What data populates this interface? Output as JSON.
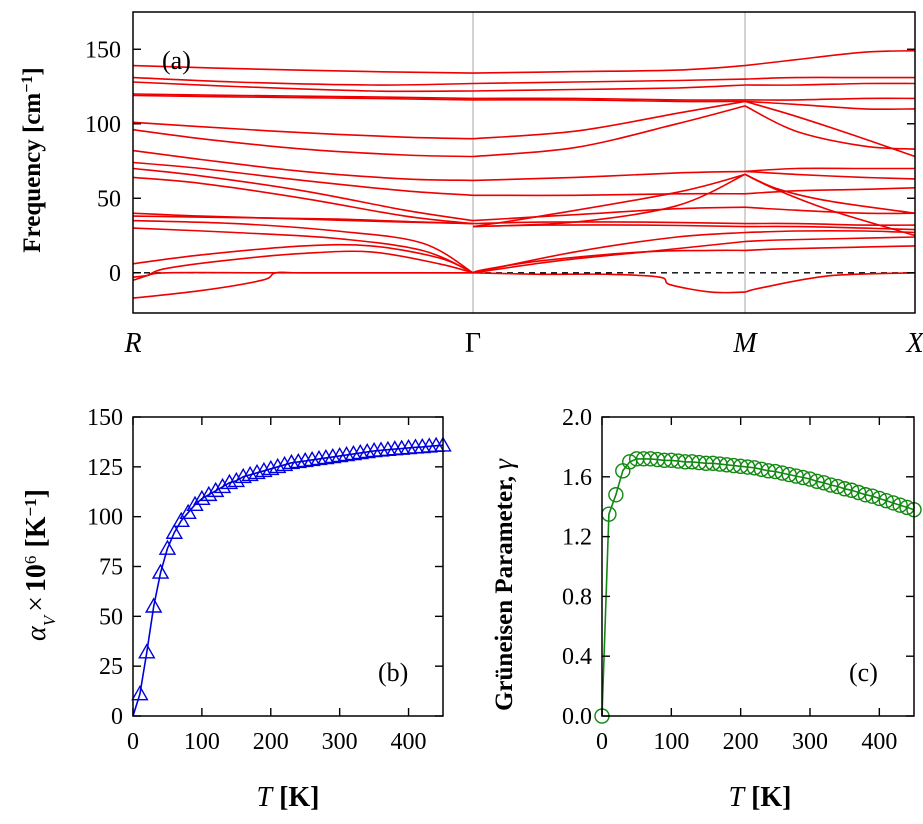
{
  "figure": {
    "panels": [
      "(a)",
      "(b)",
      "(c)"
    ]
  },
  "chart_data": [
    {
      "type": "line",
      "panel_label": "(a)",
      "title": "",
      "ylabel_text": "Frequency [cm",
      "ylabel_sup": "−1",
      "ylabel_close": "]",
      "ylim": [
        -27,
        175
      ],
      "yticks": [
        0,
        50,
        100,
        150
      ],
      "ytick_labels": [
        "0",
        "50",
        "100",
        "150"
      ],
      "high_symmetry_labels": [
        "R",
        "Γ",
        "M",
        "X"
      ],
      "high_symmetry_positions": [
        0,
        1,
        1.8,
        2.3
      ],
      "line_color": "#ee0000",
      "zero_line": "dashed",
      "series": [
        {
          "name": "branch-1",
          "x": [
            0,
            0.04,
            0.1,
            0.4,
            0.8,
            1
          ],
          "y": [
            -3,
            -2,
            0,
            0,
            0,
            0
          ]
        },
        {
          "name": "branch-2",
          "x": [
            0,
            0.2,
            0.38,
            0.42,
            0.5,
            0.8,
            1
          ],
          "y": [
            -17,
            -12,
            -5,
            0,
            0,
            0,
            0
          ]
        },
        {
          "name": "branch-3",
          "x": [
            0,
            0.04,
            0.1,
            0.3,
            0.5,
            0.7,
            0.9,
            1
          ],
          "y": [
            -5,
            -2,
            3,
            9,
            13,
            14,
            6,
            0
          ]
        },
        {
          "name": "branch-4",
          "x": [
            0,
            0.2,
            0.5,
            0.7,
            0.9,
            1
          ],
          "y": [
            6,
            12,
            18,
            18,
            10,
            0
          ]
        },
        {
          "name": "branch-5",
          "x": [
            0,
            0.3,
            0.6,
            0.85,
            1
          ],
          "y": [
            30,
            27,
            23,
            15,
            0
          ]
        },
        {
          "name": "branch-6",
          "x": [
            0,
            0.3,
            0.6,
            0.85,
            1
          ],
          "y": [
            35,
            33,
            28,
            20,
            0
          ]
        },
        {
          "name": "branch-7",
          "x": [
            1,
            1.03,
            1.2,
            1.5,
            1.7,
            1.8
          ],
          "y": [
            0,
            2,
            8,
            14,
            15,
            15
          ]
        },
        {
          "name": "branch-8",
          "x": [
            1,
            1.25,
            1.55,
            1.8
          ],
          "y": [
            0,
            8,
            15,
            21
          ]
        },
        {
          "name": "branch-9",
          "x": [
            1,
            1.2,
            1.4,
            1.55,
            1.58,
            1.7,
            1.8
          ],
          "y": [
            0,
            -1,
            -1,
            -3,
            -8,
            -13,
            -13
          ]
        },
        {
          "name": "branch-10",
          "x": [
            1,
            1.3,
            1.6,
            1.8
          ],
          "y": [
            0,
            14,
            24,
            27
          ]
        },
        {
          "name": "branch-11",
          "x": [
            1,
            1.2,
            1.5,
            1.8
          ],
          "y": [
            31,
            32,
            32,
            31
          ]
        },
        {
          "name": "branch-12",
          "x": [
            1,
            1.2,
            1.5,
            1.8
          ],
          "y": [
            33,
            34,
            34,
            33
          ]
        },
        {
          "name": "branch-13",
          "x": [
            1,
            1.3,
            1.6,
            1.8
          ],
          "y": [
            31,
            34,
            45,
            66
          ]
        },
        {
          "name": "branch-14",
          "x": [
            1,
            1.2,
            1.6,
            1.8
          ],
          "y": [
            31,
            38,
            54,
            66
          ]
        },
        {
          "name": "branch-15",
          "x": [
            0,
            0.3,
            0.6,
            0.85,
            1
          ],
          "y": [
            38,
            37,
            36,
            34,
            33
          ]
        },
        {
          "name": "branch-16",
          "x": [
            0,
            0.2,
            0.5,
            0.8,
            1
          ],
          "y": [
            40,
            38,
            36,
            34,
            33
          ]
        },
        {
          "name": "branch-17",
          "x": [
            0,
            0.2,
            0.5,
            0.8,
            1
          ],
          "y": [
            64,
            60,
            50,
            38,
            33
          ]
        },
        {
          "name": "branch-18",
          "x": [
            0,
            0.2,
            0.5,
            0.8,
            1
          ],
          "y": [
            70,
            65,
            55,
            42,
            35
          ]
        },
        {
          "name": "branch-19",
          "x": [
            0,
            0.2,
            0.5,
            0.8,
            1
          ],
          "y": [
            74,
            70,
            62,
            55,
            52
          ]
        },
        {
          "name": "branch-20",
          "x": [
            0,
            0.2,
            0.5,
            0.8,
            1
          ],
          "y": [
            82,
            76,
            68,
            63,
            62
          ]
        },
        {
          "name": "branch-21",
          "x": [
            0,
            0.2,
            0.5,
            0.8,
            1
          ],
          "y": [
            96,
            90,
            83,
            79,
            78
          ]
        },
        {
          "name": "branch-22",
          "x": [
            0,
            0.2,
            0.5,
            0.8,
            1
          ],
          "y": [
            101,
            98,
            94,
            91,
            90
          ]
        },
        {
          "name": "branch-23",
          "x": [
            0,
            0.3,
            0.7,
            1
          ],
          "y": [
            119,
            118,
            117,
            116
          ]
        },
        {
          "name": "branch-24",
          "x": [
            0,
            0.3,
            0.7,
            1
          ],
          "y": [
            120,
            119,
            118,
            117
          ]
        },
        {
          "name": "branch-25",
          "x": [
            0,
            0.3,
            0.7,
            1
          ],
          "y": [
            128,
            125,
            122,
            122
          ]
        },
        {
          "name": "branch-26",
          "x": [
            0,
            0.3,
            0.7,
            1
          ],
          "y": [
            131,
            128,
            126,
            127
          ]
        },
        {
          "name": "branch-27",
          "x": [
            0,
            0.3,
            0.7,
            1
          ],
          "y": [
            139,
            137,
            135,
            134
          ]
        },
        {
          "name": "branch-28",
          "x": [
            1,
            1.3,
            1.6,
            1.8
          ],
          "y": [
            35,
            39,
            43,
            44
          ]
        },
        {
          "name": "branch-29",
          "x": [
            1,
            1.3,
            1.6,
            1.8
          ],
          "y": [
            52,
            52,
            53,
            53
          ]
        },
        {
          "name": "branch-30",
          "x": [
            1,
            1.3,
            1.6,
            1.8
          ],
          "y": [
            62,
            64,
            67,
            68
          ]
        },
        {
          "name": "branch-31",
          "x": [
            1,
            1.3,
            1.6,
            1.8
          ],
          "y": [
            78,
            84,
            100,
            112
          ]
        },
        {
          "name": "branch-32",
          "x": [
            1,
            1.3,
            1.6,
            1.8
          ],
          "y": [
            90,
            95,
            107,
            115
          ]
        },
        {
          "name": "branch-33",
          "x": [
            1,
            1.3,
            1.6,
            1.8
          ],
          "y": [
            116,
            116,
            115,
            115
          ]
        },
        {
          "name": "branch-34",
          "x": [
            1,
            1.3,
            1.6,
            1.8
          ],
          "y": [
            117,
            117,
            116,
            116
          ]
        },
        {
          "name": "branch-35",
          "x": [
            1,
            1.3,
            1.6,
            1.8
          ],
          "y": [
            122,
            123,
            124,
            126
          ]
        },
        {
          "name": "branch-36",
          "x": [
            1,
            1.3,
            1.6,
            1.8
          ],
          "y": [
            127,
            128,
            129,
            130
          ]
        },
        {
          "name": "branch-37",
          "x": [
            1,
            1.3,
            1.6,
            1.8
          ],
          "y": [
            134,
            135,
            136,
            139
          ]
        },
        {
          "name": "branch-38",
          "x": [
            1.8,
            1.85,
            2.05,
            2.3
          ],
          "y": [
            -13,
            -10,
            -2,
            0
          ]
        },
        {
          "name": "branch-39",
          "x": [
            1.8,
            1.9,
            2.1,
            2.3
          ],
          "y": [
            15,
            16,
            17,
            18
          ]
        },
        {
          "name": "branch-40",
          "x": [
            1.8,
            1.9,
            2.1,
            2.3
          ],
          "y": [
            21,
            22,
            23,
            24
          ]
        },
        {
          "name": "branch-41",
          "x": [
            1.8,
            1.95,
            2.15,
            2.3
          ],
          "y": [
            27,
            28,
            28,
            27
          ]
        },
        {
          "name": "branch-42",
          "x": [
            1.8,
            1.95,
            2.15,
            2.3
          ],
          "y": [
            31,
            31,
            30,
            29
          ]
        },
        {
          "name": "branch-43",
          "x": [
            1.8,
            1.95,
            2.15,
            2.3
          ],
          "y": [
            33,
            33,
            32,
            32
          ]
        },
        {
          "name": "branch-44",
          "x": [
            1.8,
            1.95,
            2.15,
            2.3
          ],
          "y": [
            44,
            42,
            40,
            40
          ]
        },
        {
          "name": "branch-45",
          "x": [
            1.8,
            1.9,
            2.05,
            2.3
          ],
          "y": [
            66,
            55,
            42,
            25
          ]
        },
        {
          "name": "branch-46",
          "x": [
            1.8,
            1.9,
            2.05,
            2.3
          ],
          "y": [
            66,
            56,
            48,
            40
          ]
        },
        {
          "name": "branch-47",
          "x": [
            1.8,
            1.95,
            2.15,
            2.3
          ],
          "y": [
            53,
            55,
            56,
            57
          ]
        },
        {
          "name": "branch-48",
          "x": [
            1.8,
            1.95,
            2.15,
            2.3
          ],
          "y": [
            68,
            70,
            70,
            70
          ]
        },
        {
          "name": "branch-49",
          "x": [
            1.8,
            1.95,
            2.15,
            2.3
          ],
          "y": [
            68,
            66,
            64,
            63
          ]
        },
        {
          "name": "branch-50",
          "x": [
            1.8,
            1.95,
            2.15,
            2.3
          ],
          "y": [
            112,
            95,
            85,
            83
          ]
        },
        {
          "name": "branch-51",
          "x": [
            1.8,
            1.95,
            2.15,
            2.3
          ],
          "y": [
            115,
            105,
            90,
            78
          ]
        },
        {
          "name": "branch-52",
          "x": [
            1.8,
            1.95,
            2.15,
            2.3
          ],
          "y": [
            115,
            113,
            110,
            110
          ]
        },
        {
          "name": "branch-53",
          "x": [
            1.8,
            1.95,
            2.15,
            2.3
          ],
          "y": [
            116,
            116,
            117,
            117
          ]
        },
        {
          "name": "branch-54",
          "x": [
            1.8,
            1.95,
            2.15,
            2.3
          ],
          "y": [
            126,
            126,
            127,
            127
          ]
        },
        {
          "name": "branch-55",
          "x": [
            1.8,
            1.95,
            2.15,
            2.3
          ],
          "y": [
            130,
            131,
            131,
            131
          ]
        },
        {
          "name": "branch-56",
          "x": [
            1.8,
            1.95,
            2.15,
            2.3
          ],
          "y": [
            139,
            143,
            148,
            149
          ]
        }
      ]
    },
    {
      "type": "line",
      "panel_label": "(b)",
      "marker": "triangle",
      "color": "#0000dd",
      "xlabel_symbol": "T",
      "xlabel_unit": "[K]",
      "ylabel_symbol": "α",
      "ylabel_sub": "V",
      "ylabel_times": "×",
      "ylabel_bold": "10",
      "ylabel_exp": "6",
      "ylabel_unit": "[K",
      "ylabel_unit_exp": "−1",
      "ylabel_close": "]",
      "xlim": [
        0,
        450
      ],
      "ylim": [
        0,
        150
      ],
      "xticks": [
        0,
        100,
        200,
        300,
        400
      ],
      "xtick_labels": [
        "0",
        "100",
        "200",
        "300",
        "400"
      ],
      "yticks": [
        0,
        25,
        50,
        75,
        100,
        125,
        150
      ],
      "ytick_labels": [
        "0",
        "25",
        "50",
        "75",
        "100",
        "125",
        "150"
      ],
      "x": [
        0,
        10,
        20,
        30,
        40,
        50,
        60,
        70,
        80,
        90,
        100,
        110,
        120,
        130,
        140,
        150,
        160,
        170,
        180,
        190,
        200,
        210,
        220,
        230,
        240,
        250,
        260,
        270,
        280,
        290,
        300,
        310,
        320,
        330,
        340,
        350,
        360,
        370,
        380,
        390,
        400,
        410,
        420,
        430,
        440,
        450
      ],
      "y": [
        0,
        11,
        32,
        55,
        72,
        84,
        92,
        98,
        102,
        106,
        109,
        111,
        113,
        115,
        117,
        118,
        120,
        121,
        122,
        123,
        124,
        125,
        126,
        127,
        127.5,
        128,
        128.5,
        129,
        129.5,
        130,
        130.5,
        131,
        131.5,
        132,
        132.5,
        133,
        133.3,
        133.6,
        133.9,
        134.2,
        134.5,
        134.8,
        135,
        135.3,
        135.6,
        135.8
      ]
    },
    {
      "type": "line",
      "panel_label": "(c)",
      "marker": "circle",
      "color": "#118811",
      "xlabel_symbol": "T",
      "xlabel_unit": "[K]",
      "ylabel_text": "Grüneisen Parameter,",
      "ylabel_symbol": "γ",
      "xlim": [
        0,
        450
      ],
      "ylim": [
        0,
        2.0
      ],
      "xticks": [
        0,
        100,
        200,
        300,
        400
      ],
      "xtick_labels": [
        "0",
        "100",
        "200",
        "300",
        "400"
      ],
      "yticks": [
        0,
        0.4,
        0.8,
        1.2,
        1.6,
        2.0
      ],
      "ytick_labels": [
        "0.0",
        "0.4",
        "0.8",
        "1.2",
        "1.6",
        "2.0"
      ],
      "x": [
        0,
        10,
        20,
        30,
        40,
        50,
        60,
        70,
        80,
        90,
        100,
        110,
        120,
        130,
        140,
        150,
        160,
        170,
        180,
        190,
        200,
        210,
        220,
        230,
        240,
        250,
        260,
        270,
        280,
        290,
        300,
        310,
        320,
        330,
        340,
        350,
        360,
        370,
        380,
        390,
        400,
        410,
        420,
        430,
        440,
        450
      ],
      "y": [
        0.0,
        1.35,
        1.48,
        1.64,
        1.7,
        1.72,
        1.72,
        1.72,
        1.715,
        1.71,
        1.71,
        1.705,
        1.7,
        1.7,
        1.695,
        1.69,
        1.69,
        1.685,
        1.68,
        1.675,
        1.67,
        1.665,
        1.66,
        1.65,
        1.64,
        1.635,
        1.625,
        1.615,
        1.605,
        1.595,
        1.585,
        1.57,
        1.56,
        1.545,
        1.535,
        1.52,
        1.51,
        1.495,
        1.48,
        1.47,
        1.455,
        1.44,
        1.425,
        1.41,
        1.395,
        1.38
      ]
    }
  ]
}
